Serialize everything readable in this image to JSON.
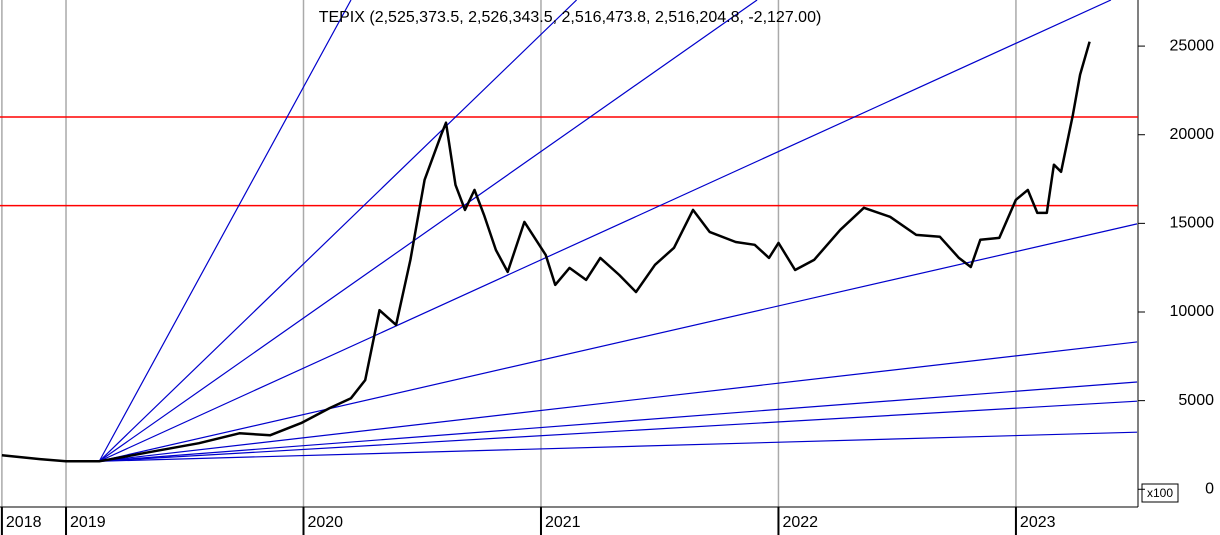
{
  "chart_data": {
    "type": "line",
    "title": "TEPIX (2,525,373.5, 2,526,343.5, 2,516,473.8, 2,516,204.8, -2,127.00)",
    "x": [
      2018.73,
      2018.89,
      2019.0,
      2019.14,
      2019.35,
      2019.56,
      2019.73,
      2019.86,
      2019.99,
      2020.11,
      2020.2,
      2020.26,
      2020.32,
      2020.39,
      2020.45,
      2020.51,
      2020.58,
      2020.6,
      2020.64,
      2020.68,
      2020.72,
      2020.76,
      2020.81,
      2020.86,
      2020.93,
      2021.02,
      2021.06,
      2021.12,
      2021.19,
      2021.25,
      2021.33,
      2021.4,
      2021.48,
      2021.56,
      2021.64,
      2021.71,
      2021.82,
      2021.9,
      2021.96,
      2022.0,
      2022.07,
      2022.15,
      2022.26,
      2022.36,
      2022.47,
      2022.58,
      2022.68,
      2022.76,
      2022.81,
      2022.85,
      2022.93,
      2023.0,
      2023.05,
      2023.09,
      2023.13,
      2023.16,
      2023.19,
      2023.24,
      2023.27,
      2023.31
    ],
    "values": [
      1920,
      1700,
      1580,
      1580,
      2090,
      2600,
      3160,
      3050,
      3730,
      4580,
      5140,
      6160,
      10100,
      9270,
      12940,
      17460,
      20000,
      20680,
      17170,
      15760,
      16890,
      15480,
      13500,
      12260,
      15080,
      13220,
      11530,
      12490,
      11810,
      13050,
      12090,
      11130,
      12660,
      13620,
      15760,
      14520,
      13950,
      13790,
      13050,
      13900,
      12370,
      12940,
      14630,
      15880,
      15370,
      14350,
      14240,
      13050,
      12540,
      14070,
      14180,
      16330,
      16890,
      15590,
      15590,
      18310,
      17910,
      21130,
      23390,
      25250
    ],
    "color": "#000000",
    "fan_lines": [
      {
        "x": [
          2019.14,
          2020.2
        ],
        "values": [
          1580,
          27600
        ]
      },
      {
        "x": [
          2019.14,
          2021.15
        ],
        "values": [
          1580,
          27600
        ]
      },
      {
        "x": [
          2019.14,
          2021.91
        ],
        "values": [
          1580,
          27600
        ]
      },
      {
        "x": [
          2019.14,
          2023.4
        ],
        "values": [
          1580,
          27600
        ]
      },
      {
        "x": [
          2019.14,
          2023.51
        ],
        "values": [
          1580,
          14970
        ]
      },
      {
        "x": [
          2019.14,
          2023.51
        ],
        "values": [
          1580,
          8310
        ]
      },
      {
        "x": [
          2019.14,
          2023.51
        ],
        "values": [
          1580,
          6050
        ]
      },
      {
        "x": [
          2019.14,
          2023.51
        ],
        "values": [
          1580,
          4970
        ]
      },
      {
        "x": [
          2019.14,
          2023.51
        ],
        "values": [
          1580,
          3220
        ]
      }
    ],
    "fan_color": "#0000cc",
    "levels": [
      21000,
      16000
    ],
    "level_color": "#ff0000",
    "xlim": [
      2018.722,
      2023.514
    ],
    "xticks": [
      {
        "value": 2018.73,
        "label": "2018"
      },
      2019,
      2020,
      2021,
      2022,
      2023
    ],
    "ylim": [
      -1000,
      27600
    ],
    "yticks": [
      0,
      5000,
      10000,
      15000,
      20000,
      25000
    ],
    "y_multiplier_label": "x100",
    "grid": true
  }
}
